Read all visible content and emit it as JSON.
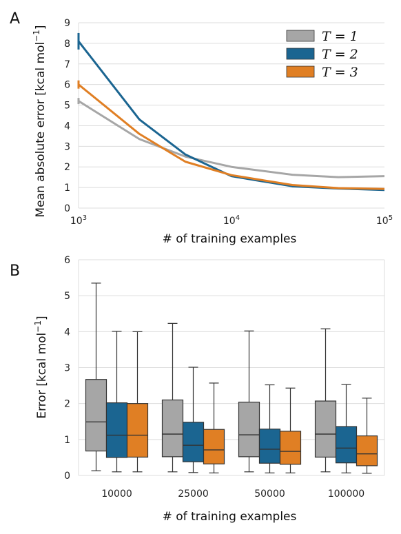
{
  "chart_data": [
    {
      "type": "line",
      "panel_label": "A",
      "xlabel": "# of training examples",
      "ylabel": "Mean absolute error [kcal mol",
      "ylabel_sup": "−1",
      "ylabel_end": "]",
      "xscale": "log",
      "xlim": [
        1000,
        100000
      ],
      "ylim": [
        0,
        9
      ],
      "xticks": [
        {
          "value": 1000,
          "base": "10",
          "exp": "3"
        },
        {
          "value": 10000,
          "base": "10",
          "exp": "4"
        },
        {
          "value": 100000,
          "base": "10",
          "exp": "5"
        }
      ],
      "yticks": [
        0,
        1,
        2,
        3,
        4,
        5,
        6,
        7,
        8,
        9
      ],
      "grid": "horizontal",
      "legend_position": "top-right",
      "series": [
        {
          "name": "T = 1",
          "var": "T",
          "val": "1",
          "color": "#a6a6a6",
          "x": [
            1000,
            2500,
            5000,
            10000,
            25000,
            50000,
            100000
          ],
          "y": [
            5.2,
            3.35,
            2.5,
            2.0,
            1.62,
            1.5,
            1.55
          ],
          "err": [
            0.15,
            0,
            0,
            0,
            0,
            0,
            0
          ]
        },
        {
          "name": "T = 2",
          "var": "T",
          "val": "2",
          "color": "#1b6591",
          "x": [
            1000,
            2500,
            5000,
            10000,
            25000,
            50000,
            100000
          ],
          "y": [
            8.1,
            4.3,
            2.6,
            1.55,
            1.06,
            0.95,
            0.88
          ],
          "err": [
            0.4,
            0,
            0,
            0,
            0,
            0,
            0
          ]
        },
        {
          "name": "T = 3",
          "var": "T",
          "val": "3",
          "color": "#e07f24",
          "x": [
            1000,
            2500,
            5000,
            10000,
            25000,
            50000,
            100000
          ],
          "y": [
            6.0,
            3.6,
            2.25,
            1.6,
            1.12,
            0.97,
            0.93
          ],
          "err": [
            0.2,
            0,
            0,
            0,
            0,
            0,
            0
          ]
        }
      ]
    },
    {
      "type": "box",
      "panel_label": "B",
      "xlabel": "# of training examples",
      "ylabel": "Error [kcal mol",
      "ylabel_sup": "−1",
      "ylabel_end": "]",
      "ylim": [
        0,
        6
      ],
      "yticks": [
        0,
        1,
        2,
        3,
        4,
        5,
        6
      ],
      "grid": "horizontal",
      "categories": [
        "10000",
        "25000",
        "50000",
        "100000"
      ],
      "series": [
        {
          "name": "T = 1",
          "color": "#a6a6a6",
          "boxes": [
            {
              "whisker_low": 0.13,
              "q1": 0.68,
              "median": 1.49,
              "q3": 2.67,
              "whisker_high": 5.35
            },
            {
              "whisker_low": 0.1,
              "q1": 0.52,
              "median": 1.15,
              "q3": 2.1,
              "whisker_high": 4.23
            },
            {
              "whisker_low": 0.1,
              "q1": 0.52,
              "median": 1.13,
              "q3": 2.04,
              "whisker_high": 4.02
            },
            {
              "whisker_low": 0.1,
              "q1": 0.51,
              "median": 1.15,
              "q3": 2.07,
              "whisker_high": 4.08
            }
          ]
        },
        {
          "name": "T = 2",
          "color": "#1b6591",
          "boxes": [
            {
              "whisker_low": 0.1,
              "q1": 0.5,
              "median": 1.12,
              "q3": 2.02,
              "whisker_high": 4.01
            },
            {
              "whisker_low": 0.08,
              "q1": 0.38,
              "median": 0.84,
              "q3": 1.48,
              "whisker_high": 3.01
            },
            {
              "whisker_low": 0.07,
              "q1": 0.34,
              "median": 0.73,
              "q3": 1.29,
              "whisker_high": 2.52
            },
            {
              "whisker_low": 0.07,
              "q1": 0.35,
              "median": 0.76,
              "q3": 1.36,
              "whisker_high": 2.53
            }
          ]
        },
        {
          "name": "T = 3",
          "color": "#e07f24",
          "boxes": [
            {
              "whisker_low": 0.1,
              "q1": 0.51,
              "median": 1.12,
              "q3": 2.0,
              "whisker_high": 4.0
            },
            {
              "whisker_low": 0.07,
              "q1": 0.32,
              "median": 0.71,
              "q3": 1.28,
              "whisker_high": 2.57
            },
            {
              "whisker_low": 0.07,
              "q1": 0.31,
              "median": 0.67,
              "q3": 1.23,
              "whisker_high": 2.43
            },
            {
              "whisker_low": 0.06,
              "q1": 0.27,
              "median": 0.6,
              "q3": 1.1,
              "whisker_high": 2.15
            }
          ]
        }
      ]
    }
  ]
}
